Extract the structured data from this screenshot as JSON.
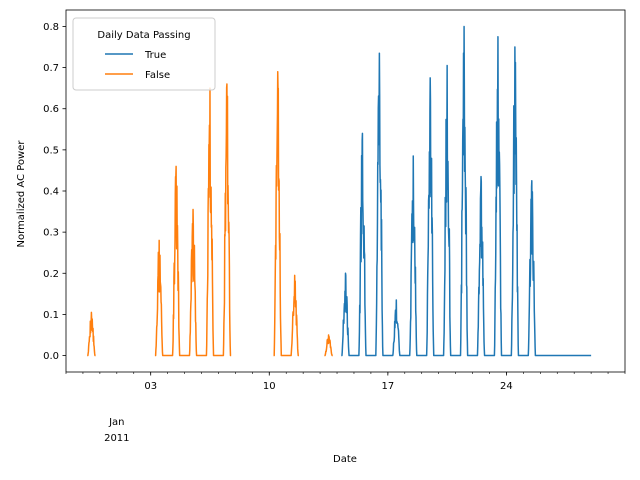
{
  "chart_data": {
    "type": "line",
    "title": "",
    "xlabel": "Date",
    "ylabel": "Normalized AC Power",
    "x_unit": "date",
    "xlim": [
      "2010-12-29",
      "2011-01-31"
    ],
    "ylim": [
      -0.04,
      0.84
    ],
    "x_major_ticks": [
      {
        "date": "2011-01-03",
        "label": "03"
      },
      {
        "date": "2011-01-10",
        "label": "10"
      },
      {
        "date": "2011-01-17",
        "label": "17"
      },
      {
        "date": "2011-01-24",
        "label": "24"
      }
    ],
    "x_month_label": [
      "Jan",
      "2011"
    ],
    "y_ticks": [
      {
        "value": 0.0,
        "label": "0.0"
      },
      {
        "value": 0.1,
        "label": "0.1"
      },
      {
        "value": 0.2,
        "label": "0.2"
      },
      {
        "value": 0.3,
        "label": "0.3"
      },
      {
        "value": 0.4,
        "label": "0.4"
      },
      {
        "value": 0.5,
        "label": "0.5"
      },
      {
        "value": 0.6,
        "label": "0.6"
      },
      {
        "value": 0.7,
        "label": "0.7"
      },
      {
        "value": 0.8,
        "label": "0.8"
      }
    ],
    "grid": false,
    "legend": {
      "title": "Daily Data Passing",
      "placement": "top-left",
      "entries": [
        {
          "label": "True",
          "color": "#1f77b4"
        },
        {
          "label": "False",
          "color": "#ff7f0e"
        }
      ]
    },
    "series": [
      {
        "name": "False",
        "color": "#ff7f0e",
        "days": [
          {
            "date": "2010-12-30",
            "peak": 0.105
          },
          {
            "date": "2011-01-03",
            "peak": 0.28
          },
          {
            "date": "2011-01-04",
            "peak": 0.46
          },
          {
            "date": "2011-01-05",
            "peak": 0.355
          },
          {
            "date": "2011-01-06",
            "peak": 0.65
          },
          {
            "date": "2011-01-07",
            "peak": 0.66
          },
          {
            "date": "2011-01-10",
            "peak": 0.69
          },
          {
            "date": "2011-01-11",
            "peak": 0.195
          },
          {
            "date": "2011-01-13",
            "peak": 0.05
          }
        ]
      },
      {
        "name": "True",
        "color": "#1f77b4",
        "days": [
          {
            "date": "2011-01-14",
            "peak": 0.2
          },
          {
            "date": "2011-01-15",
            "peak": 0.54
          },
          {
            "date": "2011-01-16",
            "peak": 0.735
          },
          {
            "date": "2011-01-17",
            "peak": 0.135
          },
          {
            "date": "2011-01-18",
            "peak": 0.485
          },
          {
            "date": "2011-01-19",
            "peak": 0.675
          },
          {
            "date": "2011-01-20",
            "peak": 0.705
          },
          {
            "date": "2011-01-21",
            "peak": 0.8
          },
          {
            "date": "2011-01-22",
            "peak": 0.435
          },
          {
            "date": "2011-01-23",
            "peak": 0.775
          },
          {
            "date": "2011-01-24",
            "peak": 0.75
          },
          {
            "date": "2011-01-25",
            "peak": 0.425
          },
          {
            "date": "2011-01-26",
            "peak": 0.0
          },
          {
            "date": "2011-01-27",
            "peak": 0.0
          },
          {
            "date": "2011-01-28",
            "peak": 0.003
          }
        ]
      }
    ]
  }
}
